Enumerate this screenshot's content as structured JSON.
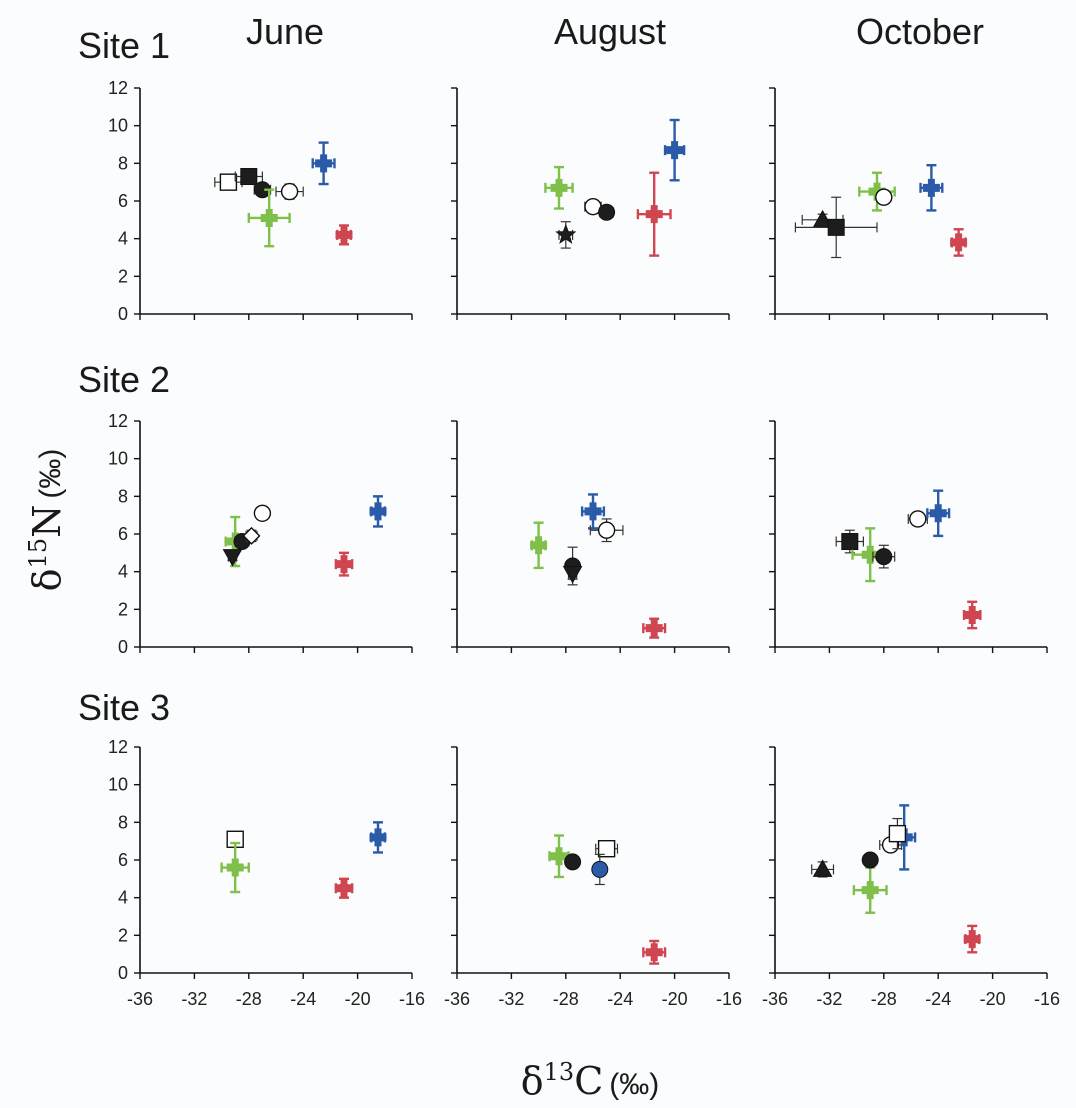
{
  "figure": {
    "columns": [
      "June",
      "August",
      "October"
    ],
    "rows": [
      "Site 1",
      "Site 2",
      "Site 3"
    ],
    "xlabel": {
      "symbol": "δ",
      "sup": "13",
      "main": "C",
      "unit": "(‰)"
    },
    "ylabel": {
      "symbol": "δ",
      "sup": "15",
      "main": "N",
      "unit": "(‰)"
    },
    "colors": {
      "blue": "#2a5aa8",
      "red": "#cf4650",
      "green": "#7fbf4a",
      "black": "#1d1d1d",
      "gray": "#444444"
    }
  },
  "chart_data": [
    {
      "type": "scatter",
      "panel": "Site 1 June",
      "xlim": [
        -36,
        -16
      ],
      "ylim": [
        0,
        12
      ],
      "yticks": [
        "0",
        "2",
        "4",
        "6",
        "8",
        "10",
        "12"
      ],
      "xticks": [],
      "points": [
        {
          "marker": "square-open",
          "x": -29.5,
          "y": 7.0,
          "xerr": 1.0,
          "yerr": 0.2,
          "color": "black"
        },
        {
          "marker": "square-filled",
          "x": -28.0,
          "y": 7.3,
          "xerr": 1.0,
          "yerr": 0.2,
          "color": "black"
        },
        {
          "marker": "circle-filled",
          "x": -27.0,
          "y": 6.6,
          "xerr": 0.6,
          "yerr": 0.3,
          "color": "black"
        },
        {
          "marker": "circle-open",
          "x": -25.0,
          "y": 6.5,
          "xerr": 1.0,
          "yerr": 0.4,
          "color": "black"
        },
        {
          "marker": "plus",
          "x": -26.5,
          "y": 5.1,
          "xerr": 1.5,
          "yerr": 1.5,
          "color": "green"
        },
        {
          "marker": "plus",
          "x": -22.5,
          "y": 8.0,
          "xerr": 0.8,
          "yerr": 1.1,
          "color": "blue"
        },
        {
          "marker": "plus",
          "x": -21.0,
          "y": 4.2,
          "xerr": 0.5,
          "yerr": 0.5,
          "color": "red"
        }
      ]
    },
    {
      "type": "scatter",
      "panel": "Site 1 August",
      "xlim": [
        -36,
        -16
      ],
      "ylim": [
        0,
        12
      ],
      "yticks": [],
      "xticks": [],
      "points": [
        {
          "marker": "plus",
          "x": -28.5,
          "y": 6.7,
          "xerr": 1.0,
          "yerr": 1.1,
          "color": "green"
        },
        {
          "marker": "star",
          "x": -28.0,
          "y": 4.2,
          "xerr": 0.5,
          "yerr": 0.7,
          "color": "black"
        },
        {
          "marker": "circle-open",
          "x": -26.0,
          "y": 5.7,
          "xerr": 0.6,
          "yerr": 0.2,
          "color": "black"
        },
        {
          "marker": "circle-filled",
          "x": -25.0,
          "y": 5.4,
          "xerr": 0.5,
          "yerr": 0.2,
          "color": "black"
        },
        {
          "marker": "plus",
          "x": -21.5,
          "y": 5.3,
          "xerr": 1.2,
          "yerr": 2.2,
          "color": "red"
        },
        {
          "marker": "plus",
          "x": -20.0,
          "y": 8.7,
          "xerr": 0.7,
          "yerr": 1.6,
          "color": "blue"
        }
      ]
    },
    {
      "type": "scatter",
      "panel": "Site 1 October",
      "xlim": [
        -36,
        -16
      ],
      "ylim": [
        0,
        12
      ],
      "yticks": [],
      "xticks": [],
      "points": [
        {
          "marker": "triangle-filled",
          "x": -32.5,
          "y": 5.0,
          "xerr": 1.5,
          "yerr": 0.3,
          "color": "black"
        },
        {
          "marker": "square-filled",
          "x": -31.5,
          "y": 4.6,
          "xerr": 3.0,
          "yerr": 1.6,
          "color": "black"
        },
        {
          "marker": "plus",
          "x": -28.5,
          "y": 6.5,
          "xerr": 1.3,
          "yerr": 1.0,
          "color": "green"
        },
        {
          "marker": "circle-open",
          "x": -28.0,
          "y": 6.2,
          "xerr": 0.5,
          "yerr": 0.3,
          "color": "black"
        },
        {
          "marker": "plus",
          "x": -24.5,
          "y": 6.7,
          "xerr": 0.8,
          "yerr": 1.2,
          "color": "blue"
        },
        {
          "marker": "plus",
          "x": -22.5,
          "y": 3.8,
          "xerr": 0.5,
          "yerr": 0.7,
          "color": "red"
        }
      ]
    },
    {
      "type": "scatter",
      "panel": "Site 2 June",
      "xlim": [
        -36,
        -16
      ],
      "ylim": [
        0,
        12
      ],
      "yticks": [
        "0",
        "2",
        "4",
        "6",
        "8",
        "10",
        "12"
      ],
      "xticks": [],
      "points": [
        {
          "marker": "plus",
          "x": -29.0,
          "y": 5.6,
          "xerr": 0.7,
          "yerr": 1.3,
          "color": "green"
        },
        {
          "marker": "triangle-down-filled",
          "x": -29.2,
          "y": 4.8,
          "xerr": 0.3,
          "yerr": 0.2,
          "color": "black"
        },
        {
          "marker": "circle-filled",
          "x": -28.5,
          "y": 5.6,
          "xerr": 0.5,
          "yerr": 0.3,
          "color": "black"
        },
        {
          "marker": "diamond-open",
          "x": -27.8,
          "y": 5.9,
          "xerr": 0.4,
          "yerr": 0.3,
          "color": "black"
        },
        {
          "marker": "circle-open",
          "x": -27.0,
          "y": 7.1,
          "xerr": 0.4,
          "yerr": 0.2,
          "color": "black"
        },
        {
          "marker": "plus",
          "x": -21.0,
          "y": 4.4,
          "xerr": 0.6,
          "yerr": 0.6,
          "color": "red"
        },
        {
          "marker": "plus",
          "x": -18.5,
          "y": 7.2,
          "xerr": 0.5,
          "yerr": 0.8,
          "color": "blue"
        }
      ]
    },
    {
      "type": "scatter",
      "panel": "Site 2 August",
      "xlim": [
        -36,
        -16
      ],
      "ylim": [
        0,
        12
      ],
      "yticks": [],
      "xticks": [],
      "points": [
        {
          "marker": "plus",
          "x": -30.0,
          "y": 5.4,
          "xerr": 0.5,
          "yerr": 1.2,
          "color": "green"
        },
        {
          "marker": "circle-filled",
          "x": -27.5,
          "y": 4.3,
          "xerr": 0.3,
          "yerr": 1.0,
          "color": "black"
        },
        {
          "marker": "triangle-down-filled",
          "x": -27.5,
          "y": 3.9,
          "xerr": 0.3,
          "yerr": 0.3,
          "color": "black"
        },
        {
          "marker": "plus",
          "x": -26.0,
          "y": 7.2,
          "xerr": 0.8,
          "yerr": 0.9,
          "color": "blue"
        },
        {
          "marker": "circle-open",
          "x": -25.0,
          "y": 6.2,
          "xerr": 1.2,
          "yerr": 0.6,
          "color": "black"
        },
        {
          "marker": "plus",
          "x": -21.5,
          "y": 1.0,
          "xerr": 0.8,
          "yerr": 0.5,
          "color": "red"
        }
      ]
    },
    {
      "type": "scatter",
      "panel": "Site 2 October",
      "xlim": [
        -36,
        -16
      ],
      "ylim": [
        0,
        12
      ],
      "yticks": [],
      "xticks": [],
      "points": [
        {
          "marker": "square-filled",
          "x": -30.5,
          "y": 5.6,
          "xerr": 1.0,
          "yerr": 0.6,
          "color": "black"
        },
        {
          "marker": "plus",
          "x": -29.0,
          "y": 4.9,
          "xerr": 1.3,
          "yerr": 1.4,
          "color": "green"
        },
        {
          "marker": "circle-filled",
          "x": -28.0,
          "y": 4.8,
          "xerr": 0.8,
          "yerr": 0.6,
          "color": "black"
        },
        {
          "marker": "circle-open",
          "x": -25.5,
          "y": 6.8,
          "xerr": 0.7,
          "yerr": 0.2,
          "color": "black"
        },
        {
          "marker": "plus",
          "x": -24.0,
          "y": 7.1,
          "xerr": 0.8,
          "yerr": 1.2,
          "color": "blue"
        },
        {
          "marker": "plus",
          "x": -21.5,
          "y": 1.7,
          "xerr": 0.6,
          "yerr": 0.7,
          "color": "red"
        }
      ]
    },
    {
      "type": "scatter",
      "panel": "Site 3 June",
      "xlim": [
        -36,
        -16
      ],
      "ylim": [
        0,
        12
      ],
      "yticks": [
        "0",
        "2",
        "4",
        "6",
        "8",
        "10",
        "12"
      ],
      "xticks": [
        "-36",
        "-32",
        "-28",
        "-24",
        "-20",
        "-16"
      ],
      "points": [
        {
          "marker": "square-open",
          "x": -29.0,
          "y": 7.1,
          "xerr": 0.3,
          "yerr": 0.2,
          "color": "black"
        },
        {
          "marker": "plus",
          "x": -29.0,
          "y": 5.6,
          "xerr": 1.0,
          "yerr": 1.3,
          "color": "green"
        },
        {
          "marker": "plus",
          "x": -21.0,
          "y": 4.5,
          "xerr": 0.6,
          "yerr": 0.5,
          "color": "red"
        },
        {
          "marker": "plus",
          "x": -18.5,
          "y": 7.2,
          "xerr": 0.5,
          "yerr": 0.8,
          "color": "blue"
        }
      ]
    },
    {
      "type": "scatter",
      "panel": "Site 3 August",
      "xlim": [
        -36,
        -16
      ],
      "ylim": [
        0,
        12
      ],
      "yticks": [],
      "xticks": [
        "-36",
        "-32",
        "-28",
        "-24",
        "-20",
        "-16"
      ],
      "points": [
        {
          "marker": "plus",
          "x": -28.5,
          "y": 6.2,
          "xerr": 0.7,
          "yerr": 1.1,
          "color": "green"
        },
        {
          "marker": "circle-filled",
          "x": -27.5,
          "y": 5.9,
          "xerr": 0.3,
          "yerr": 0.3,
          "color": "black"
        },
        {
          "marker": "square-open",
          "x": -25.0,
          "y": 6.6,
          "xerr": 0.8,
          "yerr": 0.2,
          "color": "black"
        },
        {
          "marker": "circle-filled",
          "x": -25.5,
          "y": 5.5,
          "xerr": 0.4,
          "yerr": 0.8,
          "color": "blue"
        },
        {
          "marker": "plus",
          "x": -21.5,
          "y": 1.1,
          "xerr": 0.8,
          "yerr": 0.6,
          "color": "red"
        }
      ]
    },
    {
      "type": "scatter",
      "panel": "Site 3 October",
      "xlim": [
        -36,
        -16
      ],
      "ylim": [
        0,
        12
      ],
      "yticks": [],
      "xticks": [
        "-36",
        "-32",
        "-28",
        "-24",
        "-20",
        "-16"
      ],
      "points": [
        {
          "marker": "triangle-filled",
          "x": -32.5,
          "y": 5.5,
          "xerr": 0.8,
          "yerr": 0.4,
          "color": "black"
        },
        {
          "marker": "plus",
          "x": -29.0,
          "y": 4.4,
          "xerr": 1.2,
          "yerr": 1.2,
          "color": "green"
        },
        {
          "marker": "circle-filled",
          "x": -29.0,
          "y": 6.0,
          "xerr": 0.4,
          "yerr": 0.2,
          "color": "black"
        },
        {
          "marker": "circle-open",
          "x": -27.5,
          "y": 6.8,
          "xerr": 0.8,
          "yerr": 0.3,
          "color": "black"
        },
        {
          "marker": "plus",
          "x": -26.5,
          "y": 7.2,
          "xerr": 0.8,
          "yerr": 1.7,
          "color": "blue"
        },
        {
          "marker": "square-open",
          "x": -27.0,
          "y": 7.4,
          "xerr": 0.4,
          "yerr": 0.8,
          "color": "black"
        },
        {
          "marker": "plus",
          "x": -21.5,
          "y": 1.8,
          "xerr": 0.5,
          "yerr": 0.7,
          "color": "red"
        }
      ]
    }
  ]
}
